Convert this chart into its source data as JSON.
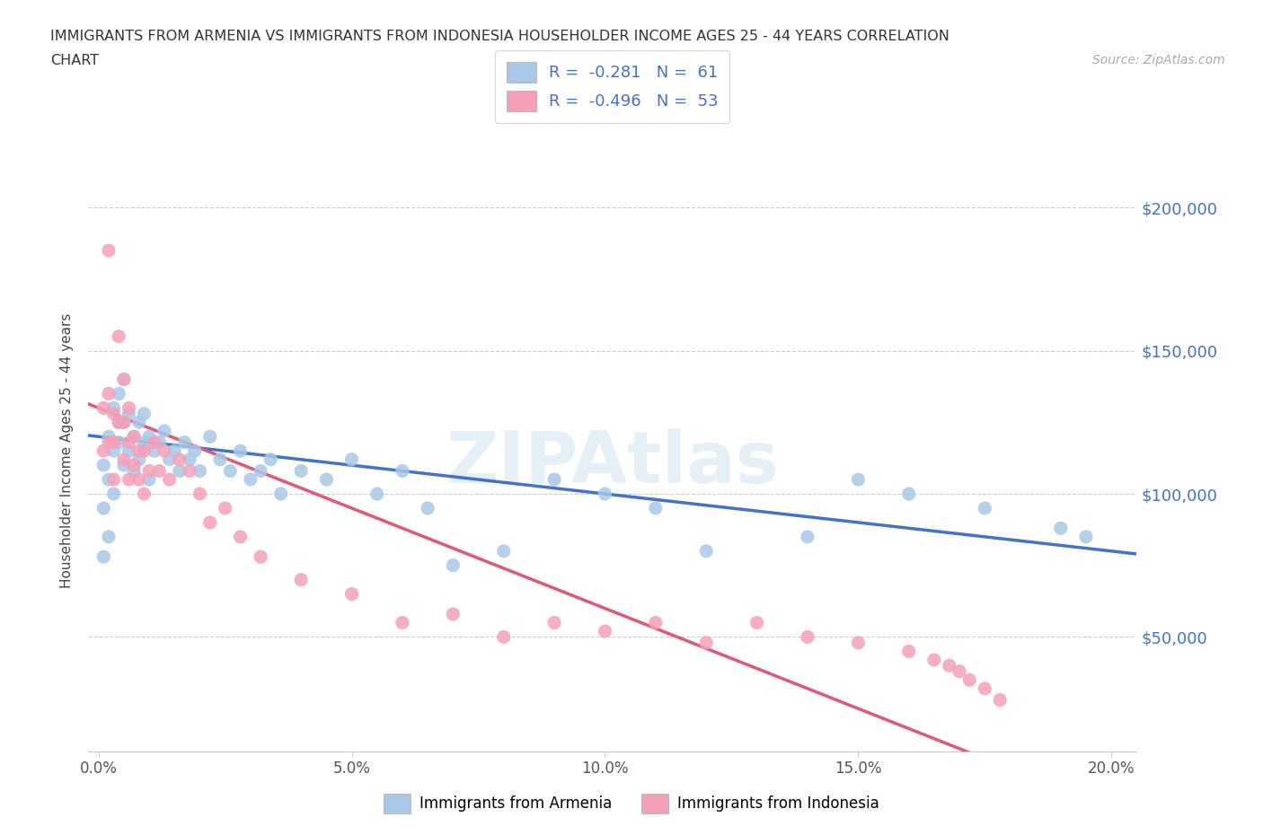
{
  "title_line1": "IMMIGRANTS FROM ARMENIA VS IMMIGRANTS FROM INDONESIA HOUSEHOLDER INCOME AGES 25 - 44 YEARS CORRELATION",
  "title_line2": "CHART",
  "source_text": "Source: ZipAtlas.com",
  "ylabel": "Householder Income Ages 25 - 44 years",
  "xlabel_ticks": [
    "0.0%",
    "5.0%",
    "10.0%",
    "15.0%",
    "20.0%"
  ],
  "xlabel_vals": [
    0.0,
    0.05,
    0.1,
    0.15,
    0.2
  ],
  "ytick_labels": [
    "$50,000",
    "$100,000",
    "$150,000",
    "$200,000"
  ],
  "ytick_vals": [
    50000,
    100000,
    150000,
    200000
  ],
  "ylim": [
    10000,
    220000
  ],
  "xlim": [
    -0.002,
    0.205
  ],
  "armenia_R": "-0.281",
  "armenia_N": "61",
  "indonesia_R": "-0.496",
  "indonesia_N": "53",
  "armenia_color": "#a8c8e8",
  "armenia_line_color": "#4472c4",
  "indonesia_color": "#f4a0b8",
  "indonesia_line_color": "#e05878",
  "watermark": "ZIPAtlas",
  "armenia_x": [
    0.001,
    0.001,
    0.001,
    0.002,
    0.002,
    0.002,
    0.003,
    0.003,
    0.003,
    0.004,
    0.004,
    0.004,
    0.005,
    0.005,
    0.005,
    0.006,
    0.006,
    0.007,
    0.007,
    0.008,
    0.008,
    0.009,
    0.009,
    0.01,
    0.01,
    0.011,
    0.012,
    0.013,
    0.014,
    0.015,
    0.016,
    0.017,
    0.018,
    0.019,
    0.02,
    0.022,
    0.024,
    0.026,
    0.028,
    0.03,
    0.032,
    0.034,
    0.036,
    0.04,
    0.045,
    0.05,
    0.055,
    0.06,
    0.065,
    0.07,
    0.08,
    0.09,
    0.1,
    0.11,
    0.12,
    0.14,
    0.15,
    0.16,
    0.175,
    0.19,
    0.195
  ],
  "armenia_y": [
    78000,
    95000,
    110000,
    85000,
    105000,
    120000,
    100000,
    115000,
    130000,
    125000,
    135000,
    118000,
    110000,
    125000,
    140000,
    115000,
    128000,
    108000,
    120000,
    112000,
    125000,
    118000,
    128000,
    105000,
    120000,
    115000,
    118000,
    122000,
    112000,
    115000,
    108000,
    118000,
    112000,
    115000,
    108000,
    120000,
    112000,
    108000,
    115000,
    105000,
    108000,
    112000,
    100000,
    108000,
    105000,
    112000,
    100000,
    108000,
    95000,
    75000,
    80000,
    105000,
    100000,
    95000,
    80000,
    85000,
    105000,
    100000,
    95000,
    88000,
    85000
  ],
  "indonesia_x": [
    0.001,
    0.001,
    0.002,
    0.002,
    0.002,
    0.003,
    0.003,
    0.003,
    0.004,
    0.004,
    0.005,
    0.005,
    0.005,
    0.006,
    0.006,
    0.006,
    0.007,
    0.007,
    0.008,
    0.008,
    0.009,
    0.009,
    0.01,
    0.011,
    0.012,
    0.013,
    0.014,
    0.016,
    0.018,
    0.02,
    0.022,
    0.025,
    0.028,
    0.032,
    0.04,
    0.05,
    0.06,
    0.07,
    0.08,
    0.09,
    0.1,
    0.11,
    0.12,
    0.13,
    0.14,
    0.15,
    0.16,
    0.165,
    0.168,
    0.17,
    0.172,
    0.175,
    0.178
  ],
  "indonesia_y": [
    130000,
    115000,
    185000,
    135000,
    118000,
    128000,
    118000,
    105000,
    155000,
    125000,
    140000,
    125000,
    112000,
    130000,
    118000,
    105000,
    120000,
    110000,
    115000,
    105000,
    115000,
    100000,
    108000,
    118000,
    108000,
    115000,
    105000,
    112000,
    108000,
    100000,
    90000,
    95000,
    85000,
    78000,
    70000,
    65000,
    55000,
    58000,
    50000,
    55000,
    52000,
    55000,
    48000,
    55000,
    50000,
    48000,
    45000,
    42000,
    40000,
    38000,
    35000,
    32000,
    28000
  ]
}
